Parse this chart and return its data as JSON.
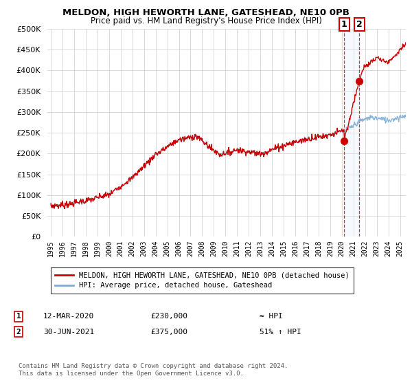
{
  "title": "MELDON, HIGH HEWORTH LANE, GATESHEAD, NE10 0PB",
  "subtitle": "Price paid vs. HM Land Registry's House Price Index (HPI)",
  "legend_line1": "MELDON, HIGH HEWORTH LANE, GATESHEAD, NE10 0PB (detached house)",
  "legend_line2": "HPI: Average price, detached house, Gateshead",
  "annotation1_label": "1",
  "annotation1_date": "12-MAR-2020",
  "annotation1_price": "£230,000",
  "annotation1_hpi": "≈ HPI",
  "annotation2_label": "2",
  "annotation2_date": "30-JUN-2021",
  "annotation2_price": "£375,000",
  "annotation2_hpi": "51% ↑ HPI",
  "footnote": "Contains HM Land Registry data © Crown copyright and database right 2024.\nThis data is licensed under the Open Government Licence v3.0.",
  "hpi_color": "#7dadd4",
  "price_color": "#cc0000",
  "vline_color": "#cc0000",
  "shade_color": "#ddeeff",
  "ylim": [
    0,
    500000
  ],
  "yticks": [
    0,
    50000,
    100000,
    150000,
    200000,
    250000,
    300000,
    350000,
    400000,
    450000,
    500000
  ],
  "sale1_x": 2020.19,
  "sale1_y": 230000,
  "sale2_x": 2021.49,
  "sale2_y": 375000,
  "xlim_left": 1994.7,
  "xlim_right": 2025.5,
  "background_color": "#ffffff",
  "grid_color": "#cccccc"
}
